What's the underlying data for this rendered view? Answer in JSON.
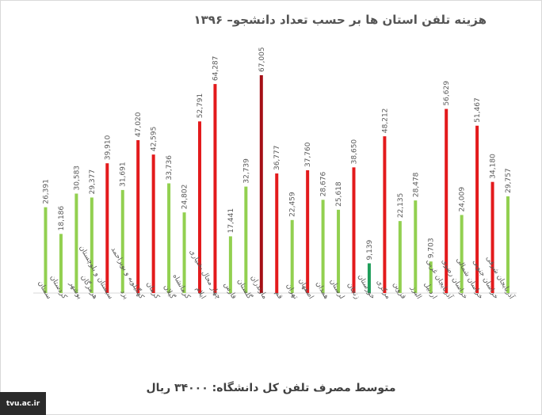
{
  "chart_data": {
    "type": "bar",
    "title": "هزینه تلفن استان ها بر حسب تعداد دانشجو– ۱۳۹۶",
    "categories": [
      "سمنان",
      "کردستان",
      "بوشهر",
      "هرمزگان",
      "سیستان و بلوچستان",
      "یزد",
      "کهگیلویه و بویراحمد",
      "کرمان",
      "گیلان",
      "کرمانشاه",
      "ایلام",
      "چهار محال بختیاری",
      "فارس",
      "گلستان",
      "مازندران",
      "قم",
      "تهران",
      "اصفهان",
      "همدان",
      "لرستان",
      "زنجان",
      "خوزستان",
      "مرکزی",
      "قزوین",
      "البرز",
      "اردبیل",
      "آذربایجان غربی",
      "خراسان رضوی",
      "خراسان شمالی",
      "خراسان جنوبی",
      "آذربایجان شرقی"
    ],
    "values": [
      26391,
      18186,
      30583,
      29377,
      39910,
      31691,
      47020,
      42595,
      33736,
      24802,
      52791,
      64287,
      17441,
      32739,
      67005,
      36777,
      22459,
      37760,
      28676,
      25618,
      38650,
      9139,
      48212,
      22135,
      28478,
      9703,
      56629,
      24009,
      51467,
      34180,
      29757
    ],
    "value_labels": [
      "26,391",
      "18,186",
      "30,583",
      "29,377",
      "39,910",
      "31,691",
      "47,020",
      "42,595",
      "33,736",
      "24,802",
      "52,791",
      "64,287",
      "17,441",
      "32,739",
      "67,005",
      "36,777",
      "22,459",
      "37,760",
      "28,676",
      "25,618",
      "38,650",
      "9,139",
      "48,212",
      "22,135",
      "28,478",
      "9,703",
      "56,629",
      "24,009",
      "51,467",
      "34,180",
      "29,757"
    ],
    "colors": [
      "#92d050",
      "#92d050",
      "#92d050",
      "#92d050",
      "#e31a1c",
      "#92d050",
      "#e31a1c",
      "#e31a1c",
      "#92d050",
      "#92d050",
      "#e31a1c",
      "#e31a1c",
      "#92d050",
      "#92d050",
      "#a50f15",
      "#e31a1c",
      "#92d050",
      "#e31a1c",
      "#92d050",
      "#92d050",
      "#e31a1c",
      "#1f9e5a",
      "#e31a1c",
      "#92d050",
      "#92d050",
      "#92d050",
      "#e31a1c",
      "#92d050",
      "#e31a1c",
      "#e31a1c",
      "#92d050"
    ],
    "ylim": [
      0,
      70000
    ],
    "xlabel": "",
    "ylabel": "",
    "grid": false,
    "legend": "none"
  },
  "footer": "متوسط مصرف تلفن کل دانشگاه: ۳۴۰۰۰ ریال",
  "site_label": "tvu.ac.ir"
}
